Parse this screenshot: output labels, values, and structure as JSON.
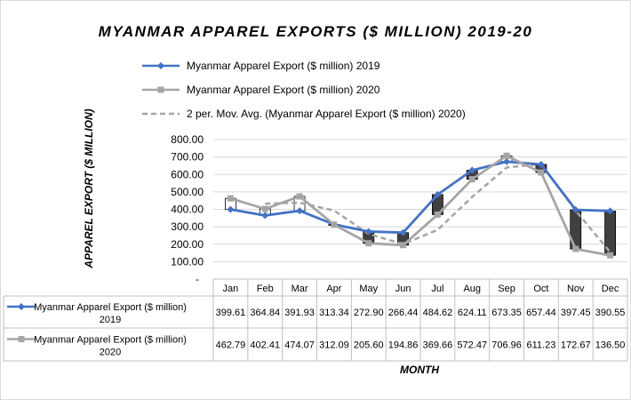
{
  "chart_data": {
    "type": "line",
    "title": "MYANMAR APPAREL EXPORTS ($ MILLION) 2019-20",
    "ylabel": "APPAREL EXPORT ($ MILLION)",
    "xlabel": "MONTH",
    "ylim": [
      0,
      800
    ],
    "yticks": [
      "-",
      "100.00",
      "200.00",
      "300.00",
      "400.00",
      "500.00",
      "600.00",
      "700.00",
      "800.00"
    ],
    "categories": [
      "Jan",
      "Feb",
      "Mar",
      "Apr",
      "May",
      "Jun",
      "Jul",
      "Aug",
      "Sep",
      "Oct",
      "Nov",
      "Dec"
    ],
    "series": [
      {
        "name": "Myanmar Apparel Export ($ million) 2019",
        "color": "#4472c4",
        "marker": "diamond",
        "values": [
          399.61,
          364.84,
          391.93,
          313.34,
          272.9,
          266.44,
          484.62,
          624.11,
          673.35,
          657.44,
          397.45,
          390.55
        ],
        "labels": [
          "399.61",
          "364.84",
          "391.93",
          "313.34",
          "272.90",
          "266.44",
          "484.62",
          "624.11",
          "673.35",
          "657.44",
          "397.45",
          "390.55"
        ]
      },
      {
        "name": "Myanmar Apparel Export ($ million) 2020",
        "color": "#a5a5a5",
        "marker": "square",
        "values": [
          462.79,
          402.41,
          474.07,
          312.09,
          205.6,
          194.86,
          369.66,
          572.47,
          706.96,
          611.23,
          172.67,
          136.5
        ],
        "labels": [
          "462.79",
          "402.41",
          "474.07",
          "312.09",
          "205.60",
          "194.86",
          "369.66",
          "572.47",
          "706.96",
          "611.23",
          "172.67",
          "136.50"
        ]
      }
    ],
    "trendline": {
      "name": "2 per. Mov. Avg. (Myanmar Apparel Export ($ million) 2020)",
      "color": "#a5a5a5",
      "style": "dashed",
      "period": 2
    },
    "updown_bars": {
      "up_color": "#ffffff",
      "down_color": "#404040"
    },
    "grid": true,
    "legend_position": "top",
    "data_table": true
  }
}
